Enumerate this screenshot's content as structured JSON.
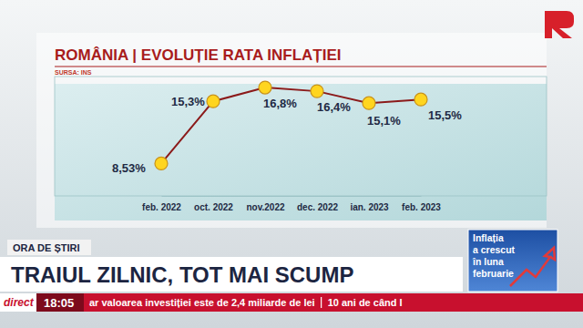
{
  "chart_data": {
    "type": "line",
    "title": "ROMÂNIA | EVOLUȚIE RATA INFLAȚIEI",
    "subtitle": "SURSA: INS",
    "categories": [
      "feb. 2022",
      "oct. 2022",
      "nov.2022",
      "dec. 2022",
      "ian. 2023",
      "feb. 2023"
    ],
    "values": [
      8.53,
      15.3,
      16.8,
      16.4,
      15.1,
      15.5
    ],
    "value_labels": [
      "8,53%",
      "15,3%",
      "16,8%",
      "16,4%",
      "15,1%",
      "15,5%"
    ],
    "color": "#8b1a1a",
    "marker": "circle",
    "line_style": "solid",
    "ylim": [
      5,
      18
    ],
    "yticks": [],
    "grid": false,
    "data_labels": true,
    "tick_labels": "x"
  },
  "screen": {
    "show": "ORA DE ȘTIRI",
    "headline": "TRAIUL ZILNIC, TOT MAI SCUMP",
    "live": "direct",
    "time": "18:05",
    "ticker": [
      "ar valoarea investiției este de 2,4 miliarde de lei",
      "10 ani de când I"
    ],
    "inset": [
      "Inflația",
      "a crescut",
      "în luna",
      "februarie"
    ]
  }
}
